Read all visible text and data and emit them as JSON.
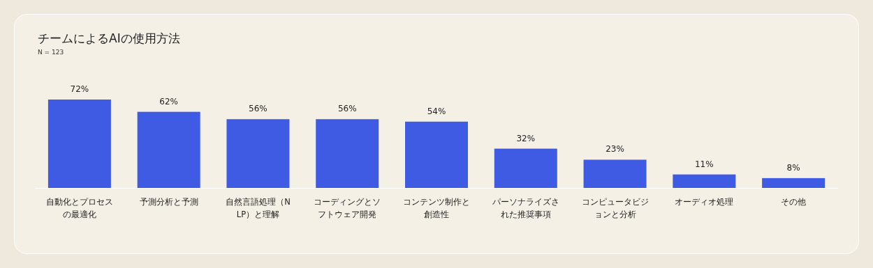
{
  "chart_data": {
    "type": "bar",
    "title": "チームによるAIの使用方法",
    "subtitle": "N = 123",
    "categories": [
      "自動化とプロセスの最適化",
      "予測分析と予測",
      "自然言語処理（NLP）と理解",
      "コーディングとソフトウェア開発",
      "コンテンツ制作と創造性",
      "パーソナライズされた推奨事項",
      "コンピュータビジョンと分析",
      "オーディオ処理",
      "その他"
    ],
    "values": [
      72,
      62,
      56,
      56,
      54,
      32,
      23,
      11,
      8
    ],
    "value_labels": [
      "72%",
      "62%",
      "56%",
      "56%",
      "54%",
      "32%",
      "23%",
      "11%",
      "8%"
    ],
    "color": "#3f5be4"
  }
}
